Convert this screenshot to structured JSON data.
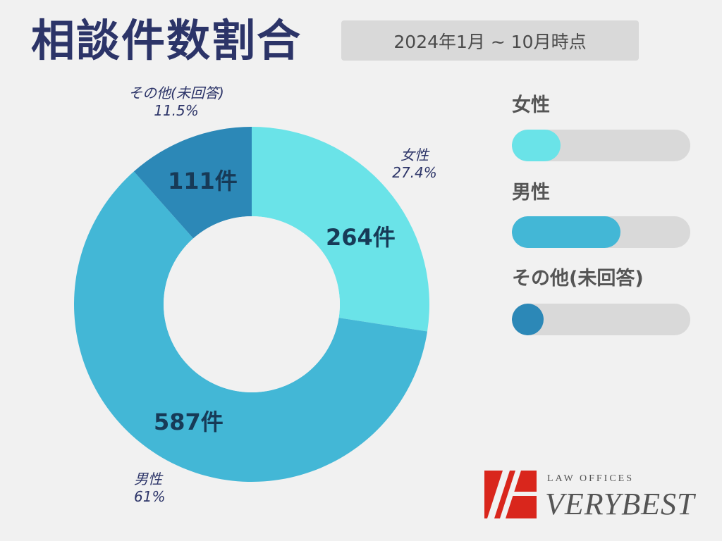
{
  "title": "相談件数割合",
  "period": "2024年1月 ~ 10月時点",
  "colors": {
    "female": "#6ae3e8",
    "male": "#43b7d6",
    "other": "#2c88b7",
    "title": "#2c3468",
    "logo_red": "#d9261c"
  },
  "chart_data": {
    "type": "pie",
    "donut": true,
    "slices": [
      {
        "name": "女性",
        "count": 264,
        "count_label": "264件",
        "percent": 27.4,
        "percent_label": "27.4%",
        "color": "#6ae3e8"
      },
      {
        "name": "男性",
        "count": 587,
        "count_label": "587件",
        "percent": 61,
        "percent_label": "61%",
        "color": "#43b7d6"
      },
      {
        "name": "その他(未回答)",
        "count": 111,
        "count_label": "111件",
        "percent": 11.5,
        "percent_label": "11.5%",
        "color": "#2c88b7"
      }
    ],
    "legend": {
      "placement": "right",
      "items": [
        {
          "label": "女性",
          "fraction": 0.274,
          "color": "#6ae3e8"
        },
        {
          "label": "男性",
          "fraction": 0.61,
          "color": "#43b7d6"
        },
        {
          "label": "その他(未回答)",
          "fraction": 0.115,
          "color": "#2c88b7"
        }
      ]
    }
  },
  "logo": {
    "top_text": "LAW OFFICES",
    "main_text": "VERYBEST"
  }
}
